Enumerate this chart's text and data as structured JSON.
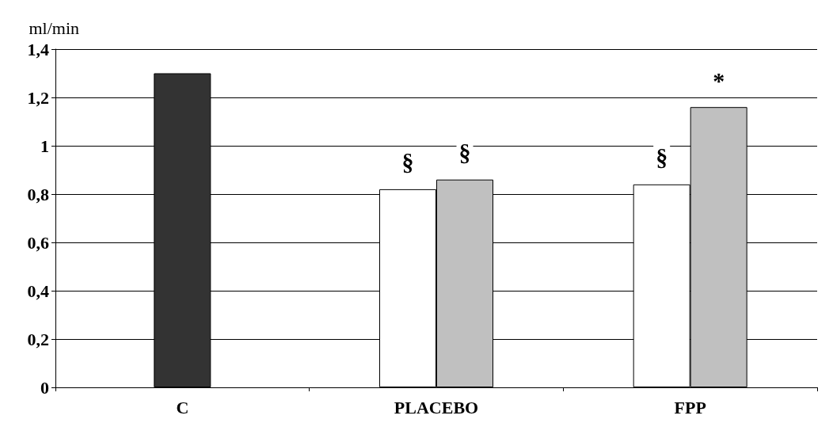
{
  "chart_data": {
    "type": "bar",
    "ylabel": "ml/min",
    "categories": [
      "C",
      "PLACEBO",
      "FPP"
    ],
    "series": [
      {
        "color": "#333333",
        "values": [
          1.3,
          null,
          null
        ]
      },
      {
        "color": "#ffffff",
        "values": [
          null,
          0.82,
          0.84
        ]
      },
      {
        "color": "#c0c0c0",
        "values": [
          null,
          0.86,
          1.16
        ]
      }
    ],
    "ylim": [
      0,
      1.4
    ],
    "yticks": [
      0,
      {
        "value": 0.2,
        "label": "0,2"
      },
      {
        "value": 0.4,
        "label": "0,4"
      },
      {
        "value": 0.6,
        "label": "0,6"
      },
      {
        "value": 0.8,
        "label": "0,8"
      },
      1,
      {
        "value": 1.2,
        "label": "1,2"
      },
      {
        "value": 1.4,
        "label": "1,4"
      }
    ],
    "grid": "y",
    "annotations": [
      {
        "text": "§",
        "x": "PLACEBO",
        "y": 0.82
      },
      {
        "text": "§",
        "x": "PLACEBO",
        "y": 0.86
      },
      {
        "text": "§",
        "x": "FPP",
        "y": 0.84
      },
      {
        "text": "*",
        "x": "FPP",
        "y": 1.16
      }
    ]
  }
}
